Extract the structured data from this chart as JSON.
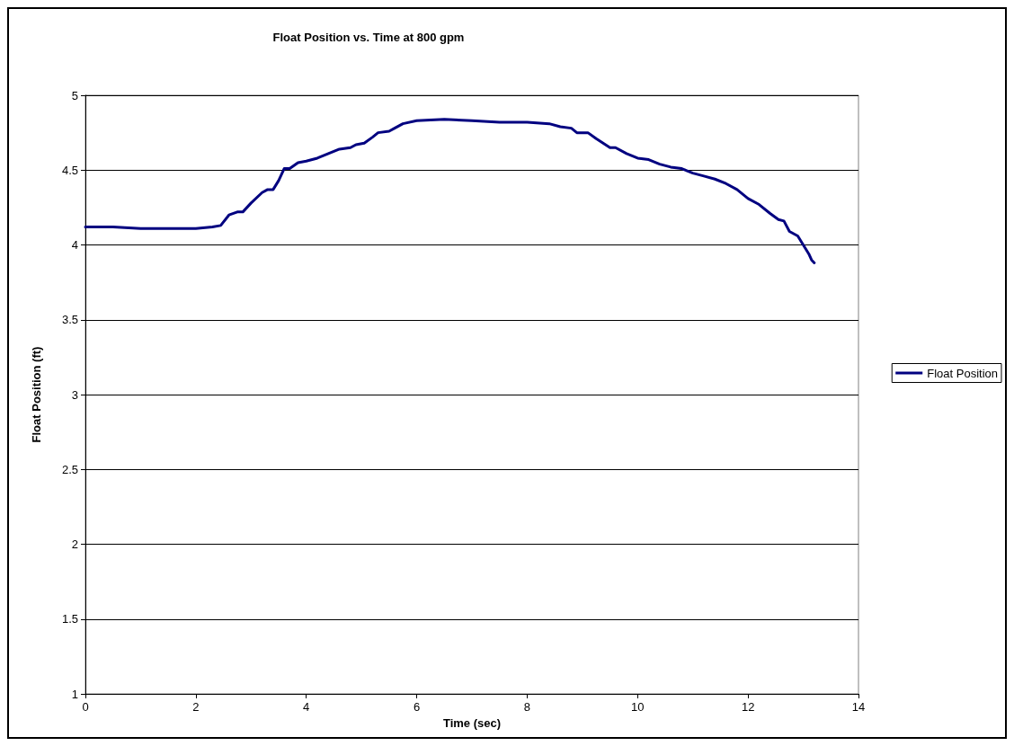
{
  "chart_data": {
    "type": "line",
    "title": "Float Position vs. Time at 800 gpm",
    "xlabel": "Time (sec)",
    "ylabel": "Float Position (ft)",
    "xlim": [
      0,
      14
    ],
    "xticks": [
      0,
      2,
      4,
      6,
      8,
      10,
      12,
      14
    ],
    "ylim": [
      1,
      5
    ],
    "yticks": [
      1,
      1.5,
      2,
      2.5,
      3,
      3.5,
      4,
      4.5,
      5
    ],
    "grid": "y",
    "legend": "right",
    "marker": "none",
    "line_style": "solid",
    "series": [
      {
        "name": "Float Position",
        "color": "#000080",
        "x": [
          0,
          0.5,
          1,
          1.5,
          2,
          2.3,
          2.45,
          2.6,
          2.75,
          2.85,
          3,
          3.2,
          3.3,
          3.4,
          3.5,
          3.6,
          3.7,
          3.85,
          4,
          4.2,
          4.4,
          4.6,
          4.8,
          4.9,
          5.05,
          5.2,
          5.3,
          5.5,
          5.6,
          5.75,
          6,
          6.5,
          7,
          7.5,
          8,
          8.4,
          8.6,
          8.8,
          8.9,
          9.1,
          9.25,
          9.5,
          9.6,
          9.8,
          10,
          10.2,
          10.4,
          10.6,
          10.8,
          11,
          11.2,
          11.4,
          11.6,
          11.8,
          12,
          12.2,
          12.4,
          12.55,
          12.65,
          12.75,
          12.9,
          13,
          13.1,
          13.15,
          13.2
        ],
        "values": [
          4.12,
          4.12,
          4.11,
          4.11,
          4.11,
          4.12,
          4.13,
          4.2,
          4.22,
          4.22,
          4.28,
          4.35,
          4.37,
          4.37,
          4.43,
          4.51,
          4.51,
          4.55,
          4.56,
          4.58,
          4.61,
          4.64,
          4.65,
          4.67,
          4.68,
          4.72,
          4.75,
          4.76,
          4.78,
          4.81,
          4.83,
          4.84,
          4.83,
          4.82,
          4.82,
          4.81,
          4.79,
          4.78,
          4.75,
          4.75,
          4.71,
          4.65,
          4.65,
          4.61,
          4.58,
          4.57,
          4.54,
          4.52,
          4.51,
          4.48,
          4.46,
          4.44,
          4.41,
          4.37,
          4.31,
          4.27,
          4.21,
          4.17,
          4.16,
          4.09,
          4.06,
          4,
          3.94,
          3.9,
          3.88
        ]
      }
    ]
  }
}
